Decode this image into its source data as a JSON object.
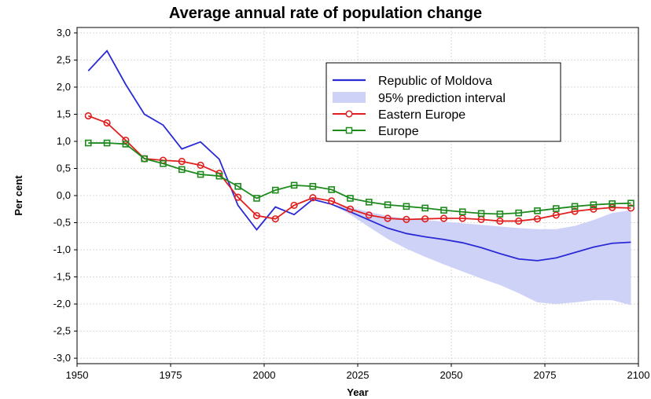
{
  "chart_data": {
    "type": "line",
    "title": "Average annual rate of population change",
    "xlabel": "Year",
    "ylabel": "Per cent",
    "xlim": [
      1950,
      2100
    ],
    "ylim": [
      -3.0,
      3.0
    ],
    "x_ticks": [
      1950,
      1975,
      2000,
      2025,
      2050,
      2075,
      2100
    ],
    "y_ticks": [
      "3,0",
      "2,5",
      "2,0",
      "1,5",
      "1,0",
      "0,5",
      "0,0",
      "-0,5",
      "-1,0",
      "-1,5",
      "-2,0",
      "-2,5",
      "-3,0"
    ],
    "y_tick_values": [
      3.0,
      2.5,
      2.0,
      1.5,
      1.0,
      0.5,
      0.0,
      -0.5,
      -1.0,
      -1.5,
      -2.0,
      -2.5,
      -3.0
    ],
    "grid": true,
    "legend_position": "top-right",
    "legend": [
      "Republic of Moldova",
      "95% prediction interval",
      "Eastern Europe",
      "Europe"
    ],
    "series": [
      {
        "name": "Republic of Moldova",
        "color": "#2b2bd6",
        "x": [
          1953,
          1958,
          1963,
          1968,
          1973,
          1978,
          1983,
          1988,
          1993,
          1998,
          2003,
          2008,
          2013,
          2018,
          2023,
          2028,
          2033,
          2038,
          2043,
          2048,
          2053,
          2058,
          2063,
          2068,
          2073,
          2078,
          2083,
          2088,
          2093,
          2098
        ],
        "values": [
          2.3,
          2.67,
          2.05,
          1.5,
          1.3,
          0.86,
          0.99,
          0.67,
          -0.18,
          -0.63,
          -0.21,
          -0.35,
          -0.07,
          -0.16,
          -0.3,
          -0.45,
          -0.6,
          -0.7,
          -0.76,
          -0.81,
          -0.87,
          -0.96,
          -1.07,
          -1.17,
          -1.2,
          -1.15,
          -1.05,
          -0.95,
          -0.88,
          -0.86
        ]
      },
      {
        "name": "Eastern Europe",
        "color": "#e02020",
        "x": [
          1953,
          1958,
          1963,
          1968,
          1973,
          1978,
          1983,
          1988,
          1993,
          1998,
          2003,
          2008,
          2013,
          2018,
          2023,
          2028,
          2033,
          2038,
          2043,
          2048,
          2053,
          2058,
          2063,
          2068,
          2073,
          2078,
          2083,
          2088,
          2093,
          2098
        ],
        "values": [
          1.47,
          1.34,
          1.02,
          0.68,
          0.65,
          0.63,
          0.56,
          0.41,
          -0.03,
          -0.37,
          -0.43,
          -0.18,
          -0.04,
          -0.1,
          -0.25,
          -0.36,
          -0.42,
          -0.44,
          -0.43,
          -0.42,
          -0.42,
          -0.44,
          -0.47,
          -0.47,
          -0.43,
          -0.36,
          -0.29,
          -0.25,
          -0.22,
          -0.23
        ]
      },
      {
        "name": "Europe",
        "color": "#1e8a1e",
        "x": [
          1953,
          1958,
          1963,
          1968,
          1973,
          1978,
          1983,
          1988,
          1993,
          1998,
          2003,
          2008,
          2013,
          2018,
          2023,
          2028,
          2033,
          2038,
          2043,
          2048,
          2053,
          2058,
          2063,
          2068,
          2073,
          2078,
          2083,
          2088,
          2093,
          2098
        ],
        "values": [
          0.97,
          0.97,
          0.95,
          0.68,
          0.59,
          0.48,
          0.39,
          0.36,
          0.17,
          -0.05,
          0.1,
          0.19,
          0.17,
          0.11,
          -0.05,
          -0.12,
          -0.17,
          -0.2,
          -0.23,
          -0.27,
          -0.3,
          -0.33,
          -0.34,
          -0.32,
          -0.28,
          -0.24,
          -0.2,
          -0.17,
          -0.15,
          -0.14
        ]
      }
    ],
    "prediction_interval": {
      "name": "95% prediction interval",
      "color": "#cfd2f7",
      "x": [
        2018,
        2023,
        2028,
        2033,
        2038,
        2043,
        2048,
        2053,
        2058,
        2063,
        2068,
        2073,
        2078,
        2083,
        2088,
        2093,
        2098
      ],
      "lower": [
        -0.16,
        -0.35,
        -0.58,
        -0.8,
        -0.98,
        -1.13,
        -1.27,
        -1.4,
        -1.53,
        -1.65,
        -1.8,
        -1.97,
        -2.0,
        -1.97,
        -1.93,
        -1.93,
        -2.02
      ],
      "upper": [
        -0.16,
        -0.22,
        -0.3,
        -0.38,
        -0.42,
        -0.45,
        -0.48,
        -0.51,
        -0.54,
        -0.57,
        -0.6,
        -0.62,
        -0.62,
        -0.56,
        -0.45,
        -0.32,
        -0.27
      ]
    }
  }
}
